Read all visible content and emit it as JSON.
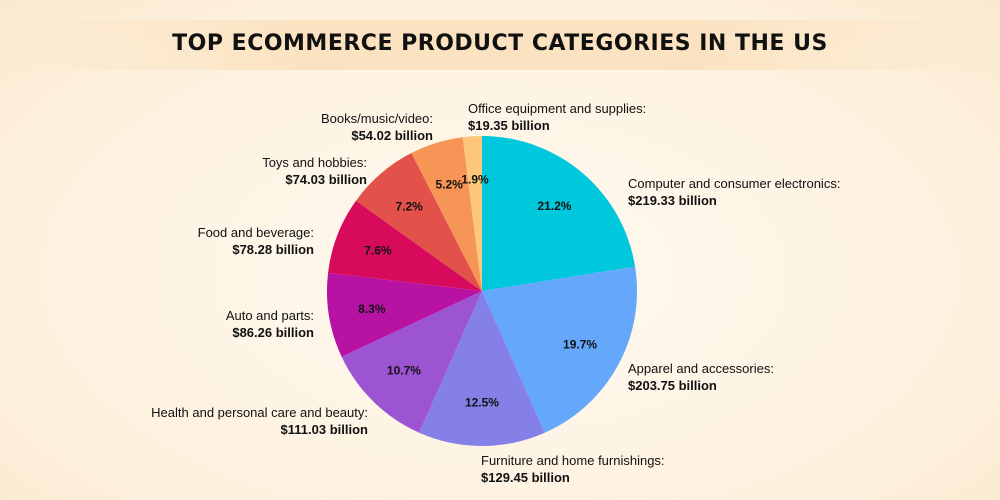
{
  "chart_data": {
    "type": "pie",
    "title": "TOP ECOMMERCE PRODUCT CATEGORIES IN THE US",
    "slices": [
      {
        "label": "Computer and consumer electronics:",
        "value_text": "$219.33 billion",
        "value": 219.33,
        "percent": "21.2%",
        "color": "#00c8dc"
      },
      {
        "label": "Apparel and accessories:",
        "value_text": "$203.75 billion",
        "value": 203.75,
        "percent": "19.7%",
        "color": "#65a8fb"
      },
      {
        "label": "Furniture and home furnishings:",
        "value_text": "$129.45 billion",
        "value": 129.45,
        "percent": "12.5%",
        "color": "#8580e8"
      },
      {
        "label": "Health and personal care and beauty:",
        "value_text": "$111.03 billion",
        "value": 111.03,
        "percent": "10.7%",
        "color": "#9d54d2"
      },
      {
        "label": "Auto and parts:",
        "value_text": "$86.26 billion",
        "value": 86.26,
        "percent": "8.3%",
        "color": "#b712a2"
      },
      {
        "label": "Food and beverage:",
        "value_text": "$78.28 billion",
        "value": 78.28,
        "percent": "7.6%",
        "color": "#d80a5c"
      },
      {
        "label": "Toys and hobbies:",
        "value_text": "$74.03 billion",
        "value": 74.03,
        "percent": "7.2%",
        "color": "#e2524a"
      },
      {
        "label": "Books/music/video:",
        "value_text": "$54.02 billion",
        "value": 54.02,
        "percent": "5.2%",
        "color": "#f79556"
      },
      {
        "label": "Office equipment and supplies:",
        "value_text": "$19.35 billion",
        "value": 19.35,
        "percent": "1.9%",
        "color": "#fcc77a"
      }
    ]
  }
}
